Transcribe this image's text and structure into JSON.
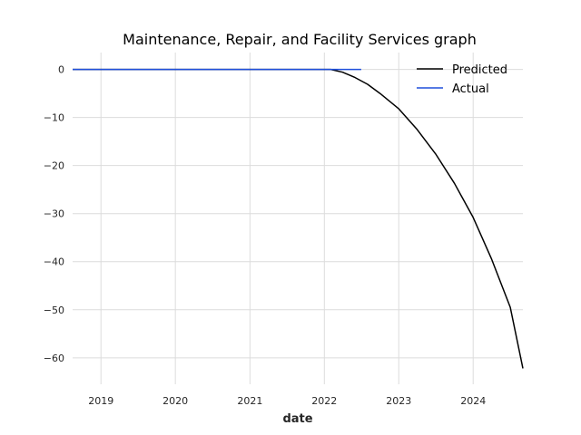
{
  "chart_data": {
    "type": "line",
    "title": "Maintenance, Repair, and Facility Services graph",
    "xlabel": "date",
    "ylabel": "",
    "x_type": "date",
    "xlim": [
      "2018-08-15",
      "2024-09-01"
    ],
    "ylim": [
      -65.5,
      3.5
    ],
    "x_ticks": [
      "2019-01-01",
      "2020-01-01",
      "2021-01-01",
      "2022-01-01",
      "2023-01-01",
      "2024-01-01"
    ],
    "x_tick_labels": [
      "2019",
      "2020",
      "2021",
      "2022",
      "2023",
      "2024"
    ],
    "y_ticks": [
      0,
      -10,
      -20,
      -30,
      -40,
      -50,
      -60
    ],
    "y_tick_labels": [
      "0",
      "−10",
      "−20",
      "−30",
      "−40",
      "−50",
      "−60"
    ],
    "grid": true,
    "legend_position": "top-right",
    "series": [
      {
        "name": "Predicted",
        "color": "#000000",
        "x": [
          "2018-08-15",
          "2019-01-01",
          "2020-01-01",
          "2021-01-01",
          "2022-01-01",
          "2022-02-01",
          "2022-04-01",
          "2022-06-01",
          "2022-08-01",
          "2022-10-01",
          "2023-01-01",
          "2023-04-01",
          "2023-07-01",
          "2023-10-01",
          "2024-01-01",
          "2024-04-01",
          "2024-07-01",
          "2024-09-01"
        ],
        "y": [
          0,
          0,
          0,
          0,
          0,
          0,
          -0.6,
          -1.7,
          -3.1,
          -5.0,
          -8.2,
          -12.5,
          -17.6,
          -23.7,
          -30.8,
          -39.5,
          -49.5,
          -62.2
        ]
      },
      {
        "name": "Actual",
        "color": "#1f4fdc",
        "x": [
          "2018-08-15",
          "2019-01-01",
          "2020-01-01",
          "2021-01-01",
          "2022-01-01",
          "2022-07-01"
        ],
        "y": [
          0,
          0,
          0,
          0,
          0,
          0
        ]
      }
    ]
  }
}
